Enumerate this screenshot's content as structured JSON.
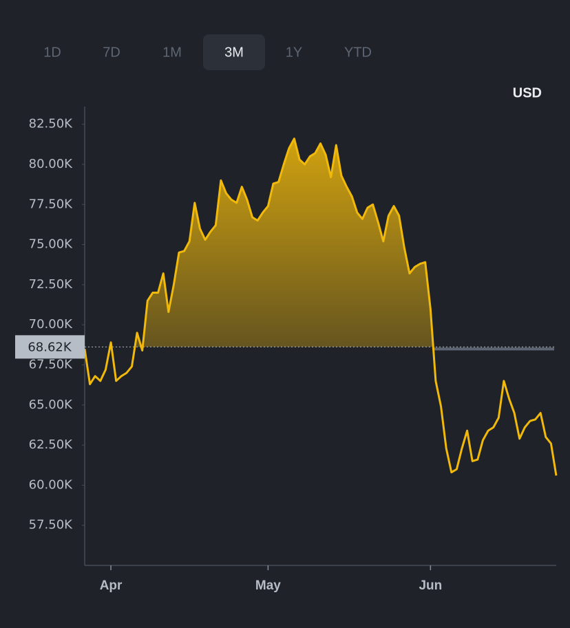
{
  "tabs": [
    "1D",
    "7D",
    "1M",
    "3M",
    "1Y",
    "YTD"
  ],
  "selected_tab_index": 3,
  "chart_data": {
    "type": "line",
    "currency": "USD",
    "x": [
      0,
      1,
      2,
      3,
      4,
      5,
      6,
      7,
      8,
      9,
      10,
      11,
      12,
      13,
      14,
      15,
      16,
      17,
      18,
      19,
      20,
      21,
      22,
      23,
      24,
      25,
      26,
      27,
      28,
      29,
      30,
      31,
      32,
      33,
      34,
      35,
      36,
      37,
      38,
      39,
      40,
      41,
      42,
      43,
      44,
      45,
      46,
      47,
      48,
      49,
      50,
      51,
      52,
      53,
      54,
      55,
      56,
      57,
      58,
      59,
      60,
      61,
      62,
      63,
      64,
      65,
      66,
      67,
      68,
      69,
      70,
      71,
      72,
      73,
      74,
      75,
      76,
      77,
      78,
      79,
      80,
      81,
      82,
      83,
      84,
      85,
      86,
      87,
      88,
      89,
      90
    ],
    "values": [
      68.5,
      66.3,
      66.8,
      66.5,
      67.2,
      68.9,
      66.5,
      66.8,
      67.0,
      67.4,
      69.5,
      68.4,
      71.5,
      72.0,
      72.0,
      73.2,
      70.8,
      72.5,
      74.5,
      74.6,
      75.2,
      77.6,
      76.0,
      75.3,
      75.8,
      76.2,
      79.0,
      78.2,
      77.8,
      77.6,
      78.6,
      77.8,
      76.7,
      76.5,
      77.0,
      77.4,
      78.8,
      78.9,
      80.0,
      81.0,
      81.6,
      80.3,
      80.0,
      80.5,
      80.7,
      81.3,
      80.6,
      79.2,
      81.2,
      79.3,
      78.6,
      78.0,
      77.0,
      76.6,
      77.3,
      77.5,
      76.4,
      75.2,
      76.8,
      77.4,
      76.8,
      74.8,
      73.2,
      73.6,
      73.8,
      73.9,
      71.0,
      66.5,
      64.9,
      62.3,
      60.8,
      61.0,
      62.3,
      63.4,
      61.5,
      61.6,
      62.8,
      63.4,
      63.6,
      64.2,
      66.5,
      65.4,
      64.5,
      62.9,
      63.6,
      64.0,
      64.1,
      64.5,
      63.0,
      62.6,
      60.6
    ],
    "color": "#f0b90b",
    "xlim": [
      0,
      90
    ],
    "xticks": [
      {
        "value": 5,
        "label": "Apr"
      },
      {
        "value": 35,
        "label": "May"
      },
      {
        "value": 66,
        "label": "Jun"
      }
    ],
    "ylim": [
      55,
      83.6
    ],
    "yticks": [
      {
        "value": 57.5,
        "label": "57.50K"
      },
      {
        "value": 60,
        "label": "60.00K"
      },
      {
        "value": 62.5,
        "label": "62.50K"
      },
      {
        "value": 65,
        "label": "65.00K"
      },
      {
        "value": 67.5,
        "label": "67.50K"
      },
      {
        "value": 70,
        "label": "70.00K"
      },
      {
        "value": 72.5,
        "label": "72.50K"
      },
      {
        "value": 75,
        "label": "75.00K"
      },
      {
        "value": 77.5,
        "label": "77.50K"
      },
      {
        "value": 80,
        "label": "80.00K"
      },
      {
        "value": 82.5,
        "label": "82.50K"
      }
    ],
    "current_price": {
      "value": 68.62,
      "label": "68.62K"
    }
  }
}
